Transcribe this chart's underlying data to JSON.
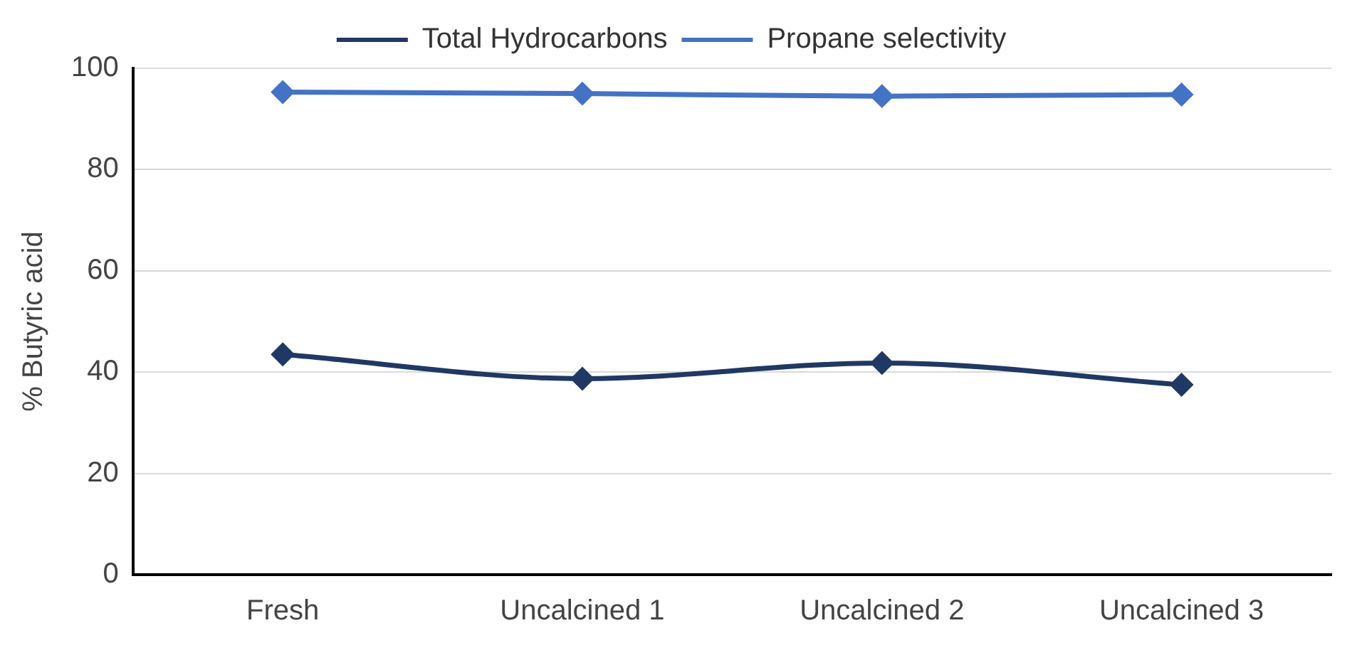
{
  "chart_data": {
    "type": "line",
    "ylabel": "% Butyric acid",
    "categories": [
      "Fresh",
      "Uncalcined 1",
      "Uncalcined 2",
      "Uncalcined 3"
    ],
    "series": [
      {
        "name": "Total Hydrocarbons",
        "color": "#203864",
        "values": [
          43.5,
          38.7,
          41.8,
          37.5
        ]
      },
      {
        "name": "Propane selectivity",
        "color": "#4472c4",
        "values": [
          95.3,
          95.0,
          94.5,
          94.8
        ]
      }
    ],
    "ylim": [
      0,
      100
    ],
    "yticks": [
      0,
      20,
      40,
      60,
      80,
      100
    ],
    "grid": "y",
    "legend": "top",
    "marker": "diamond",
    "line_style": "solid"
  }
}
